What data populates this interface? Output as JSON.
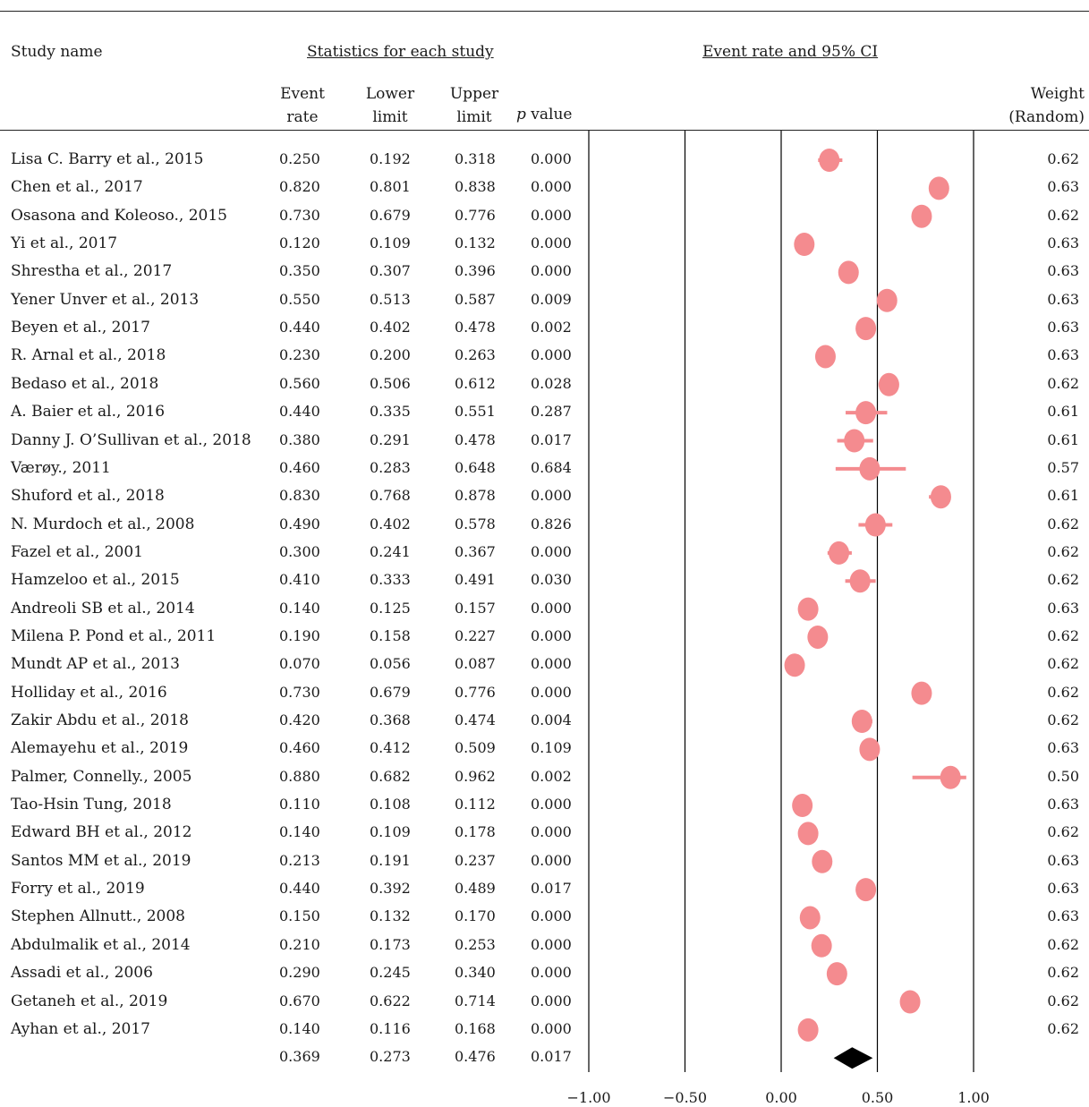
{
  "header": {
    "study_name": "Study name",
    "stats_group": "Statistics for each study",
    "plot_group": "Event rate and 95% CI",
    "event_rate": [
      "Event",
      "rate"
    ],
    "lower_limit": [
      "Lower",
      "limit"
    ],
    "upper_limit": [
      "Upper",
      "limit"
    ],
    "p_value_p": "p",
    "p_value_rest": " value",
    "weight": [
      "Weight",
      "(Random)"
    ]
  },
  "chart_data": {
    "type": "forest",
    "x_ticks": [
      "−1.00",
      "−0.50",
      "0.00",
      "0.50",
      "1.00"
    ],
    "x_tick_values": [
      -1.0,
      -0.5,
      0.0,
      0.5,
      1.0
    ],
    "xlim": [
      -1.0,
      1.0
    ],
    "colors": {
      "marker": "#f48b8f",
      "summary": "#000000",
      "line": "#000000"
    },
    "studies": [
      {
        "name": "Lisa C. Barry et al., 2015",
        "rate": "0.250",
        "lower": "0.192",
        "upper": "0.318",
        "p": "0.000",
        "weight": "0.62"
      },
      {
        "name": "Chen et al., 2017",
        "rate": "0.820",
        "lower": "0.801",
        "upper": "0.838",
        "p": "0.000",
        "weight": "0.63"
      },
      {
        "name": "Osasona and Koleoso., 2015",
        "rate": "0.730",
        "lower": "0.679",
        "upper": "0.776",
        "p": "0.000",
        "weight": "0.62"
      },
      {
        "name": "Yi et al., 2017",
        "rate": "0.120",
        "lower": "0.109",
        "upper": "0.132",
        "p": "0.000",
        "weight": "0.63"
      },
      {
        "name": "Shrestha et al., 2017",
        "rate": "0.350",
        "lower": "0.307",
        "upper": "0.396",
        "p": "0.000",
        "weight": "0.63"
      },
      {
        "name": "Yener Unver et al., 2013",
        "rate": "0.550",
        "lower": "0.513",
        "upper": "0.587",
        "p": "0.009",
        "weight": "0.63"
      },
      {
        "name": "Beyen et al., 2017",
        "rate": "0.440",
        "lower": "0.402",
        "upper": "0.478",
        "p": "0.002",
        "weight": "0.63"
      },
      {
        "name": "R. Arnal et al., 2018",
        "rate": "0.230",
        "lower": "0.200",
        "upper": "0.263",
        "p": "0.000",
        "weight": "0.63"
      },
      {
        "name": "Bedaso et al., 2018",
        "rate": "0.560",
        "lower": "0.506",
        "upper": "0.612",
        "p": "0.028",
        "weight": "0.62"
      },
      {
        "name": "A. Baier et al., 2016",
        "rate": "0.440",
        "lower": "0.335",
        "upper": "0.551",
        "p": "0.287",
        "weight": "0.61"
      },
      {
        "name": "Danny J. O’Sullivan et al., 2018",
        "rate": "0.380",
        "lower": "0.291",
        "upper": "0.478",
        "p": "0.017",
        "weight": "0.61"
      },
      {
        "name": "Værøy., 2011",
        "rate": "0.460",
        "lower": "0.283",
        "upper": "0.648",
        "p": "0.684",
        "weight": "0.57"
      },
      {
        "name": "Shuford et al., 2018",
        "rate": "0.830",
        "lower": "0.768",
        "upper": "0.878",
        "p": "0.000",
        "weight": "0.61"
      },
      {
        "name": "N. Murdoch et al., 2008",
        "rate": "0.490",
        "lower": "0.402",
        "upper": "0.578",
        "p": "0.826",
        "weight": "0.62"
      },
      {
        "name": "Fazel et al., 2001",
        "rate": "0.300",
        "lower": "0.241",
        "upper": "0.367",
        "p": "0.000",
        "weight": "0.62"
      },
      {
        "name": "Hamzeloo et al., 2015",
        "rate": "0.410",
        "lower": "0.333",
        "upper": "0.491",
        "p": "0.030",
        "weight": "0.62"
      },
      {
        "name": "Andreoli SB et al., 2014",
        "rate": "0.140",
        "lower": "0.125",
        "upper": "0.157",
        "p": "0.000",
        "weight": "0.63"
      },
      {
        "name": "Milena P. Pond et al., 2011",
        "rate": "0.190",
        "lower": "0.158",
        "upper": "0.227",
        "p": "0.000",
        "weight": "0.62"
      },
      {
        "name": "Mundt AP et al., 2013",
        "rate": "0.070",
        "lower": "0.056",
        "upper": "0.087",
        "p": "0.000",
        "weight": "0.62"
      },
      {
        "name": "Holliday et al., 2016",
        "rate": "0.730",
        "lower": "0.679",
        "upper": "0.776",
        "p": "0.000",
        "weight": "0.62"
      },
      {
        "name": "Zakir Abdu et al., 2018",
        "rate": "0.420",
        "lower": "0.368",
        "upper": "0.474",
        "p": "0.004",
        "weight": "0.62"
      },
      {
        "name": "Alemayehu et al., 2019",
        "rate": "0.460",
        "lower": "0.412",
        "upper": "0.509",
        "p": "0.109",
        "weight": "0.63"
      },
      {
        "name": "Palmer, Connelly., 2005",
        "rate": "0.880",
        "lower": "0.682",
        "upper": "0.962",
        "p": "0.002",
        "weight": "0.50"
      },
      {
        "name": "Tao-Hsin Tung, 2018",
        "rate": "0.110",
        "lower": "0.108",
        "upper": "0.112",
        "p": "0.000",
        "weight": "0.63"
      },
      {
        "name": "Edward BH et al., 2012",
        "rate": "0.140",
        "lower": "0.109",
        "upper": "0.178",
        "p": "0.000",
        "weight": "0.62"
      },
      {
        "name": "Santos MM et al., 2019",
        "rate": "0.213",
        "lower": "0.191",
        "upper": "0.237",
        "p": "0.000",
        "weight": "0.63"
      },
      {
        "name": "Forry et al., 2019",
        "rate": "0.440",
        "lower": "0.392",
        "upper": "0.489",
        "p": "0.017",
        "weight": "0.63"
      },
      {
        "name": "Stephen Allnutt., 2008",
        "rate": "0.150",
        "lower": "0.132",
        "upper": "0.170",
        "p": "0.000",
        "weight": "0.63"
      },
      {
        "name": "Abdulmalik et al., 2014",
        "rate": "0.210",
        "lower": "0.173",
        "upper": "0.253",
        "p": "0.000",
        "weight": "0.62"
      },
      {
        "name": "Assadi et al., 2006",
        "rate": "0.290",
        "lower": "0.245",
        "upper": "0.340",
        "p": "0.000",
        "weight": "0.62"
      },
      {
        "name": "Getaneh et al., 2019",
        "rate": "0.670",
        "lower": "0.622",
        "upper": "0.714",
        "p": "0.000",
        "weight": "0.62"
      },
      {
        "name": "Ayhan et al., 2017",
        "rate": "0.140",
        "lower": "0.116",
        "upper": "0.168",
        "p": "0.000",
        "weight": "0.62"
      }
    ],
    "summary": {
      "rate": "0.369",
      "lower": "0.273",
      "upper": "0.476",
      "p": "0.017"
    }
  }
}
